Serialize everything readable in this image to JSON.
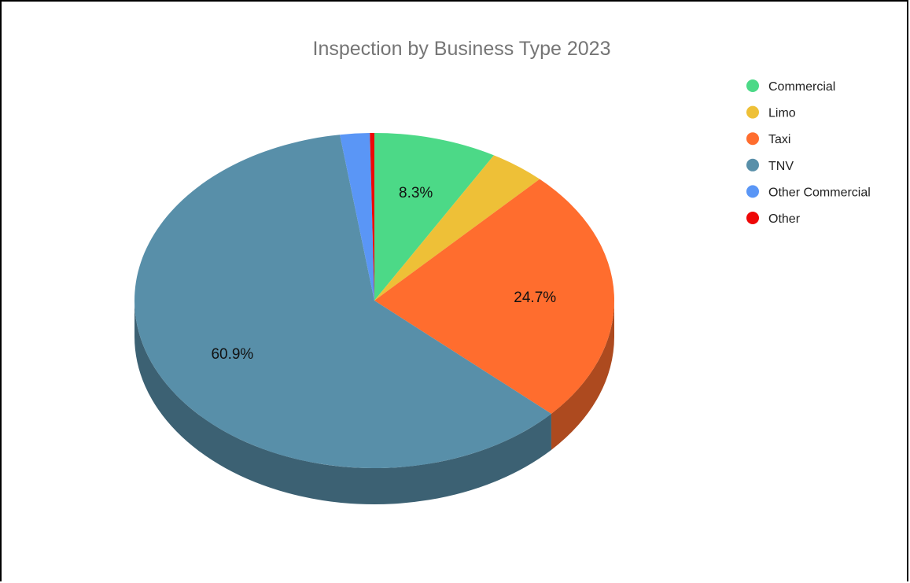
{
  "chart_data": {
    "type": "pie",
    "style": "3d",
    "title": "Inspection by Business Type 2023",
    "legend_position": "top-right",
    "categories": [
      "Commercial",
      "Limo",
      "Taxi",
      "TNV",
      "Other Commercial",
      "Other"
    ],
    "values": [
      8.3,
      3.8,
      24.7,
      60.9,
      2.0,
      0.3
    ],
    "colors": [
      "#4cd987",
      "#eec037",
      "#ff6d2e",
      "#588fa9",
      "#5a96f6",
      "#ee0707"
    ],
    "shown_labels": [
      "8.3%",
      null,
      "24.7%",
      "60.9%",
      null,
      null
    ]
  }
}
